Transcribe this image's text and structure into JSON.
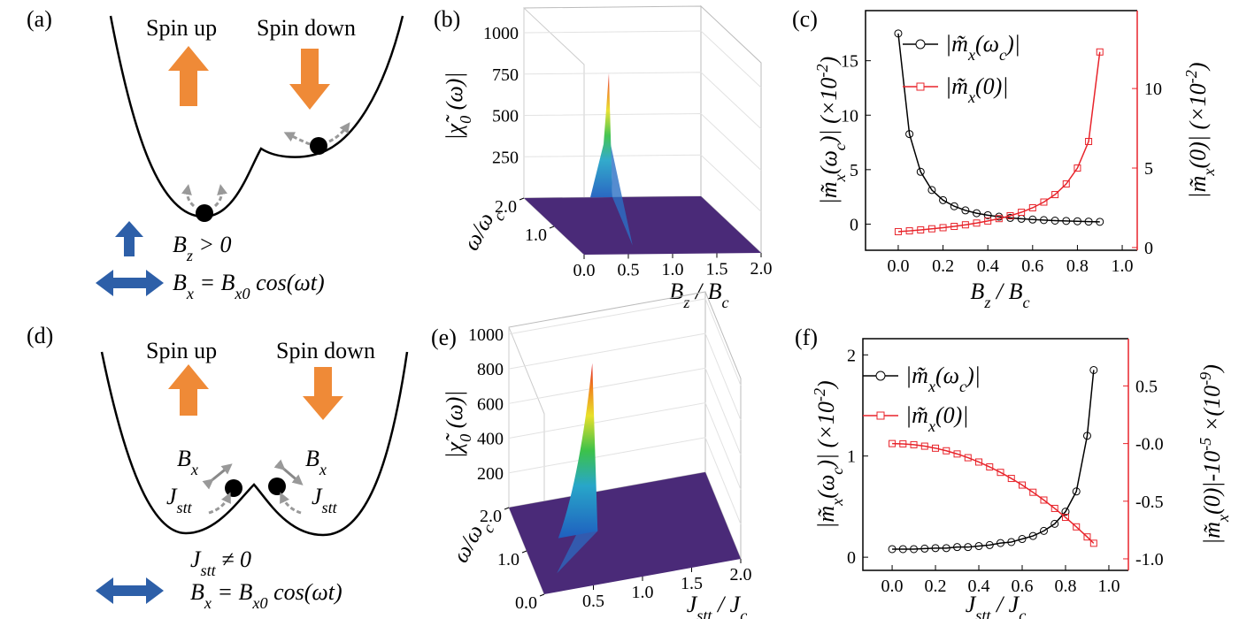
{
  "diagrams": [
    {
      "label": "(a)",
      "texts": [
        [
          {
            "t": "Spin up"
          }
        ],
        [
          {
            "t": "Spin down"
          }
        ],
        [
          {
            "t": "B"
          },
          {
            "t": "z",
            "s": "sub"
          },
          {
            "t": " > 0"
          }
        ],
        [
          {
            "t": "B"
          },
          {
            "t": "x",
            "s": "sub"
          },
          {
            "t": " = B"
          },
          {
            "t": "x0",
            "s": "sub"
          },
          {
            "t": " cos(ωt)"
          }
        ]
      ]
    },
    {
      "label": "(d)",
      "texts": [
        [
          {
            "t": "Spin up"
          }
        ],
        [
          {
            "t": "Spin down"
          }
        ],
        [
          {
            "t": "B"
          },
          {
            "t": "x",
            "s": "sub"
          }
        ],
        [
          {
            "t": "B"
          },
          {
            "t": "x",
            "s": "sub"
          }
        ],
        [
          {
            "t": "J"
          },
          {
            "t": "stt",
            "s": "sub"
          }
        ],
        [
          {
            "t": "J"
          },
          {
            "t": "stt",
            "s": "sub"
          }
        ],
        [
          {
            "t": "J"
          },
          {
            "t": "stt",
            "s": "sub"
          },
          {
            "t": " ≠ 0"
          }
        ],
        [
          {
            "t": "B"
          },
          {
            "t": "x",
            "s": "sub"
          },
          {
            "t": " = B"
          },
          {
            "t": "x0",
            "s": "sub"
          },
          {
            "t": " cos(ωt)"
          }
        ]
      ]
    }
  ],
  "chart_data": [
    {
      "type": "surface3d",
      "label": "(b)",
      "zlabel": [
        {
          "t": "|χ̃"
        },
        {
          "t": "0",
          "s": "sub"
        },
        {
          "t": " (ω)|"
        }
      ],
      "ylabel": [
        {
          "t": "ω/ω"
        },
        {
          "t": "c",
          "s": "sub"
        }
      ],
      "xlabel": [
        {
          "t": "B"
        },
        {
          "t": "z",
          "s": "sub"
        },
        {
          "t": " / B"
        },
        {
          "t": "c",
          "s": "sub"
        }
      ],
      "zlim": [
        0,
        1150
      ],
      "zticks": [
        250,
        500,
        750,
        1000
      ],
      "xlim": [
        0,
        2
      ],
      "xticks": [
        {
          "value": 0,
          "label": "0.0"
        },
        0.5,
        {
          "value": 1,
          "label": "1.0"
        },
        1.5,
        {
          "value": 2,
          "label": "2.0"
        }
      ],
      "ylim": [
        0,
        2
      ],
      "yticks": [
        {
          "value": 1,
          "label": "1.0"
        },
        {
          "value": 2,
          "label": "2.0"
        }
      ],
      "floor_color": "#4a2a78"
    },
    {
      "type": "line",
      "label": "(c)",
      "x": [
        0,
        0.05,
        0.1,
        0.15,
        0.2,
        0.25,
        0.3,
        0.35,
        0.4,
        0.45,
        0.5,
        0.55,
        0.6,
        0.65,
        0.7,
        0.75,
        0.8,
        0.85,
        0.9
      ],
      "series": [
        {
          "name": [
            {
              "t": "|m̃"
            },
            {
              "t": "x",
              "s": "sub"
            },
            {
              "t": "(ω"
            },
            {
              "t": "c",
              "s": "sub"
            },
            {
              "t": ")|"
            }
          ],
          "color": "#000000",
          "marker": "circle",
          "values": [
            17.5,
            8.27,
            4.8,
            3.13,
            2.2,
            1.64,
            1.26,
            1.0,
            0.82,
            0.68,
            0.57,
            0.49,
            0.42,
            0.37,
            0.32,
            0.29,
            0.26,
            0.23,
            0.21
          ]
        },
        {
          "name": [
            {
              "t": "|m̃"
            },
            {
              "t": "x",
              "s": "sub"
            },
            {
              "t": "(0)|"
            }
          ],
          "color": "#e8242b",
          "marker": "square",
          "axis": "y2",
          "values": [
            1,
            1.05,
            1.11,
            1.18,
            1.25,
            1.33,
            1.43,
            1.54,
            1.67,
            1.82,
            2,
            2.22,
            2.5,
            2.86,
            3.33,
            4,
            5,
            6.67,
            12.3
          ]
        }
      ],
      "xlim": [
        -0.146,
        1.067
      ],
      "xticks": [
        {
          "value": 0,
          "label": "0.0"
        },
        0.2,
        0.4,
        0.6,
        0.8,
        {
          "value": 1,
          "label": "1.0"
        }
      ],
      "ylim": [
        -2.4,
        19.6
      ],
      "yticks": [
        0,
        5,
        10,
        15
      ],
      "y2lim": [
        -0.17,
        14.9
      ],
      "y2ticks": [
        0,
        5,
        10
      ],
      "xlabel": [
        {
          "t": "B"
        },
        {
          "t": "z",
          "s": "sub"
        },
        {
          "t": " / B"
        },
        {
          "t": "c",
          "s": "sub"
        }
      ],
      "ylabel": [
        {
          "t": "|m̃"
        },
        {
          "t": "x",
          "s": "sub"
        },
        {
          "t": "(ω"
        },
        {
          "t": "c",
          "s": "sub"
        },
        {
          "t": ")| (×10"
        },
        {
          "t": "-2",
          "s": "sup"
        },
        {
          "t": ")"
        }
      ],
      "y2label": [
        {
          "t": "|m̃"
        },
        {
          "t": "x",
          "s": "sub"
        },
        {
          "t": "(0)| (×10"
        },
        {
          "t": "-2",
          "s": "sup"
        },
        {
          "t": ")"
        }
      ]
    },
    {
      "type": "surface3d",
      "label": "(e)",
      "zlabel": [
        {
          "t": "|χ̃"
        },
        {
          "t": "0",
          "s": "sub"
        },
        {
          "t": " (ω)|"
        }
      ],
      "ylabel": [
        {
          "t": "ω/ω"
        },
        {
          "t": "c",
          "s": "sub"
        }
      ],
      "xlabel": [
        {
          "t": "J"
        },
        {
          "t": "stt",
          "s": "sub"
        },
        {
          "t": " / J"
        },
        {
          "t": "c",
          "s": "sub"
        }
      ],
      "zlim": [
        0,
        1040
      ],
      "zticks": [
        200,
        400,
        600,
        800,
        1000
      ],
      "xlim": [
        0,
        2
      ],
      "xticks": [
        0.5,
        {
          "value": 1,
          "label": "1.0"
        },
        1.5,
        {
          "value": 2,
          "label": "2.0"
        }
      ],
      "ylim": [
        0,
        2
      ],
      "yticks": [
        {
          "value": 0,
          "label": "0.0"
        },
        {
          "value": 1,
          "label": "1.0"
        },
        {
          "value": 2,
          "label": "2.0"
        }
      ],
      "floor_color": "#4a2a78"
    },
    {
      "type": "line",
      "label": "(f)",
      "x": [
        0,
        0.05,
        0.1,
        0.15,
        0.2,
        0.25,
        0.3,
        0.35,
        0.4,
        0.45,
        0.5,
        0.55,
        0.6,
        0.65,
        0.7,
        0.75,
        0.8,
        0.85,
        0.9,
        0.93
      ],
      "series": [
        {
          "name": [
            {
              "t": "|m̃"
            },
            {
              "t": "x",
              "s": "sub"
            },
            {
              "t": "(ω"
            },
            {
              "t": "c",
              "s": "sub"
            },
            {
              "t": ")|"
            }
          ],
          "color": "#000000",
          "marker": "circle",
          "values": [
            0.08,
            0.08,
            0.08,
            0.085,
            0.09,
            0.09,
            0.1,
            0.1,
            0.11,
            0.12,
            0.14,
            0.15,
            0.18,
            0.21,
            0.26,
            0.33,
            0.45,
            0.65,
            1.2,
            1.85
          ]
        },
        {
          "name": [
            {
              "t": "|m̃"
            },
            {
              "t": "x",
              "s": "sub"
            },
            {
              "t": "(0)|"
            }
          ],
          "color": "#e8242b",
          "marker": "square",
          "axis": "y2",
          "values": [
            0,
            -0.0025,
            -0.01,
            -0.0225,
            -0.04,
            -0.0625,
            -0.09,
            -0.1225,
            -0.16,
            -0.2025,
            -0.25,
            -0.3025,
            -0.36,
            -0.4225,
            -0.49,
            -0.5625,
            -0.64,
            -0.7225,
            -0.81,
            -0.8649
          ]
        }
      ],
      "xlim": [
        -0.135,
        1.09
      ],
      "xticks": [
        {
          "value": 0,
          "label": "0.0"
        },
        0.2,
        0.4,
        0.6,
        0.8,
        {
          "value": 1,
          "label": "1.0"
        }
      ],
      "ylim": [
        -0.13,
        2.16
      ],
      "yticks": [
        0,
        1,
        2
      ],
      "y2lim": [
        -1.1,
        0.91
      ],
      "y2ticks": [
        0.5,
        {
          "value": 0,
          "label": "-0.0"
        },
        -0.5,
        {
          "value": -1,
          "label": "-1.0"
        }
      ],
      "xlabel": [
        {
          "t": "J"
        },
        {
          "t": "stt",
          "s": "sub"
        },
        {
          "t": " / J"
        },
        {
          "t": "c",
          "s": "sub"
        }
      ],
      "ylabel": [
        {
          "t": "|m̃"
        },
        {
          "t": "x",
          "s": "sub"
        },
        {
          "t": "(ω"
        },
        {
          "t": "c",
          "s": "sub"
        },
        {
          "t": ")| (×10"
        },
        {
          "t": "-2",
          "s": "sup"
        },
        {
          "t": ")"
        }
      ],
      "y2label": [
        {
          "t": "|m̃"
        },
        {
          "t": "x",
          "s": "sub"
        },
        {
          "t": "(0)|-10"
        },
        {
          "t": "-5",
          "s": "sup"
        },
        {
          "t": " ×(10"
        },
        {
          "t": "-9",
          "s": "sup"
        },
        {
          "t": ")"
        }
      ]
    }
  ]
}
